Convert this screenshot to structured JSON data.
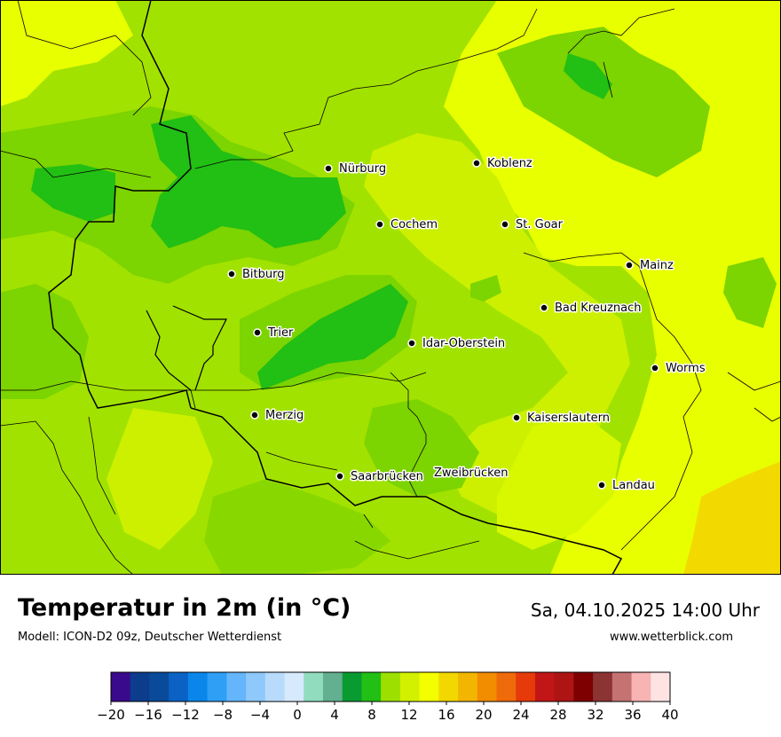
{
  "header": {
    "title": "Temperatur in 2m (in °C)",
    "subtitle": "Modell: ICON-D2 09z, Deutscher Wetterdienst",
    "datetime": "Sa, 04.10.2025 14:00 Uhr",
    "website": "www.wetterblick.com"
  },
  "cities": [
    {
      "name": "Nürburg"
    },
    {
      "name": "Koblenz"
    },
    {
      "name": "Cochem"
    },
    {
      "name": "St. Goar"
    },
    {
      "name": "Mainz"
    },
    {
      "name": "Bitburg"
    },
    {
      "name": "Bad Kreuznach"
    },
    {
      "name": "Trier"
    },
    {
      "name": "Idar-Oberstein"
    },
    {
      "name": "Worms"
    },
    {
      "name": "Merzig"
    },
    {
      "name": "Kaiserslautern"
    },
    {
      "name": "Saarbrücken"
    },
    {
      "name": "Zweibrücken"
    },
    {
      "name": "Landau"
    }
  ],
  "legend": {
    "tick_labels": [
      "−20",
      "−16",
      "−12",
      "−8",
      "−4",
      "0",
      "4",
      "8",
      "12",
      "16",
      "20",
      "24",
      "28",
      "32",
      "36",
      "40"
    ],
    "colors": [
      "#3a0a8c",
      "#0b3d8c",
      "#0a4a9a",
      "#0b62c4",
      "#0a86ea",
      "#2e9ff5",
      "#64b5fb",
      "#8fc8fb",
      "#b8dbfc",
      "#d6e9fd",
      "#91dcbf",
      "#62b08f",
      "#0a9a32",
      "#22bf14",
      "#9de000",
      "#d2f000",
      "#f3ff00",
      "#f2d700",
      "#f2b600",
      "#f28d00",
      "#ef6a0a",
      "#e63a0a",
      "#c21616",
      "#ad1414",
      "#7e0000",
      "#8c3434",
      "#c57272",
      "#f8b3b3",
      "#ffe3e3"
    ]
  }
}
